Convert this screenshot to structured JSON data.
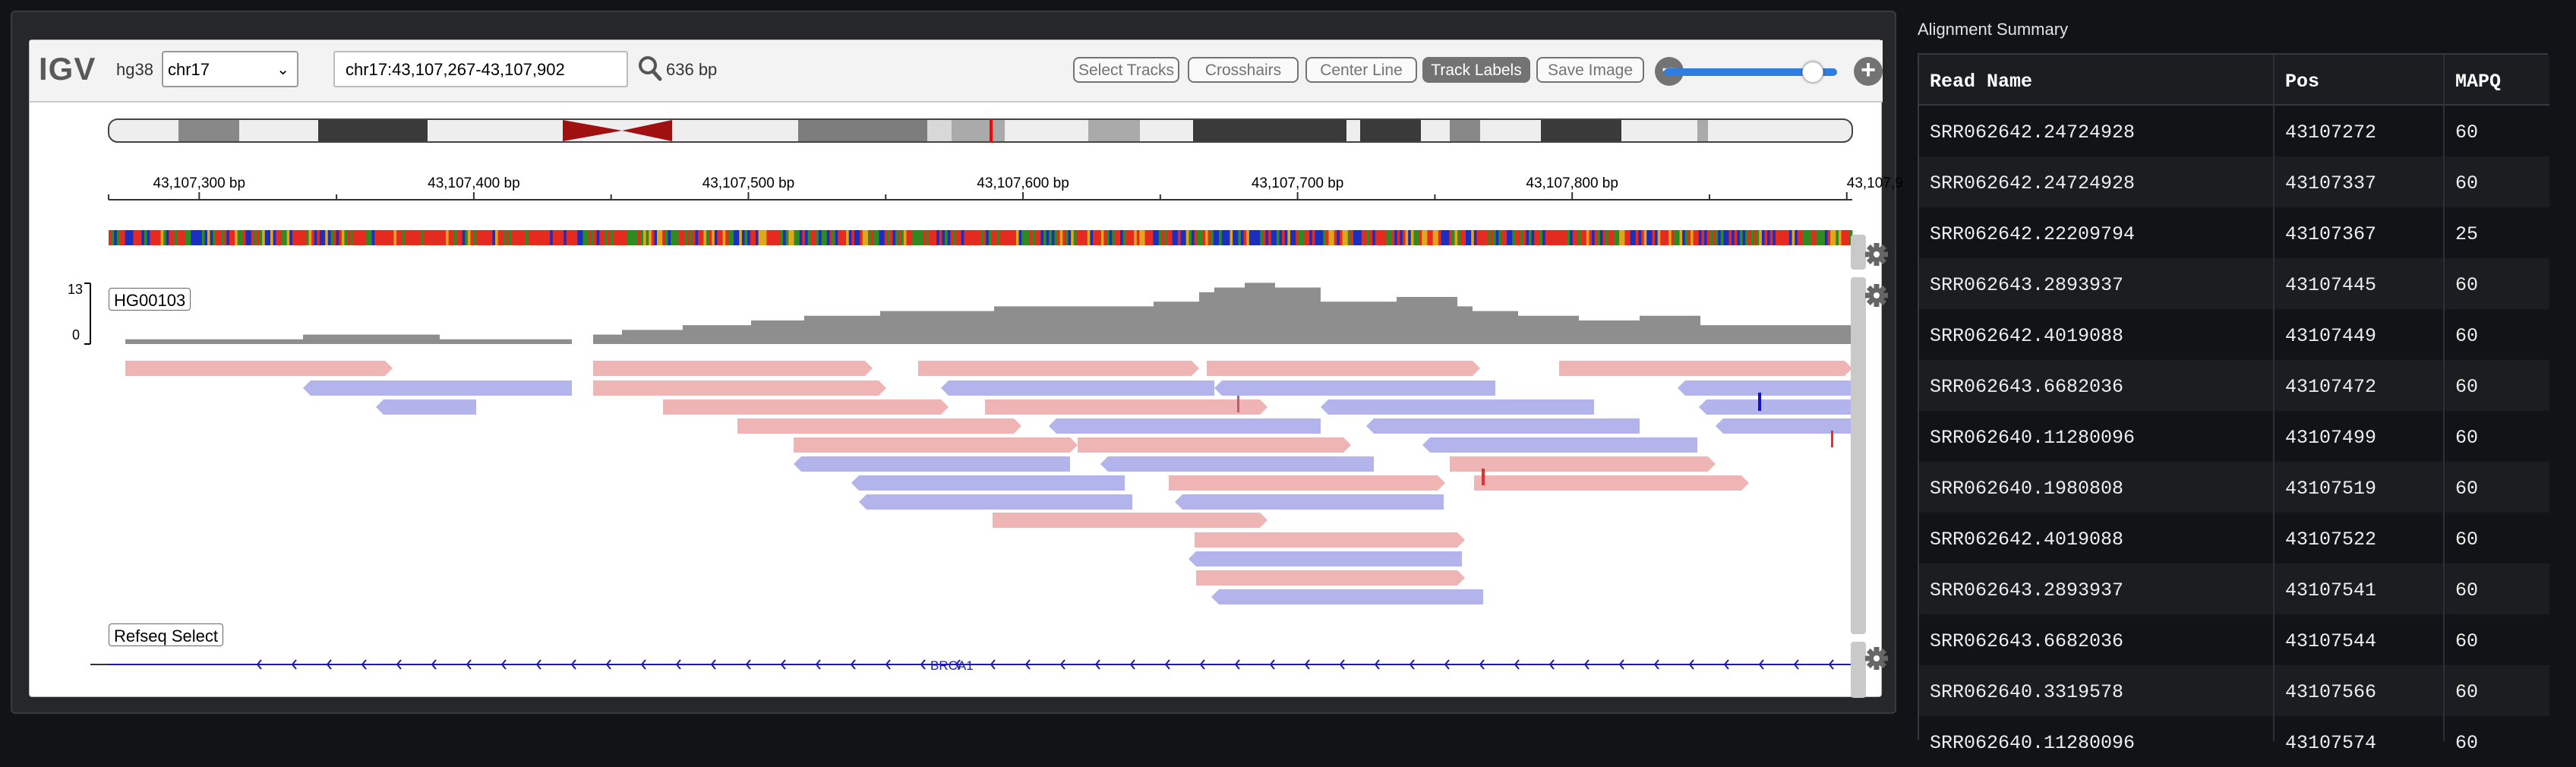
{
  "igv": {
    "logo": "IGV",
    "genome": "hg38",
    "chromosome": "chr17",
    "locus": "chr17:43,107,267-43,107,902",
    "window_size": "636 bp",
    "buttons": [
      "Select Tracks",
      "Crosshairs",
      "Center Line",
      "Track Labels",
      "Save Image"
    ],
    "active_button": "Track Labels",
    "zoom_level": 0.86,
    "ruler": {
      "start": 43107267,
      "end": 43107902,
      "labels": [
        "43,107,300 bp",
        "43,107,400 bp",
        "43,107,500 bp",
        "43,107,600 bp",
        "43,107,700 bp",
        "43,107,800 bp",
        "43,107,9"
      ]
    },
    "coverage": {
      "label": "HG00103",
      "max": "13",
      "min": "0"
    },
    "gene_track": {
      "label": "Refseq Select",
      "gene": "BRCA1",
      "color": "#1b1baa"
    },
    "colors": {
      "forward_read": "#efb4b4",
      "reverse_read": "#b4b4ed",
      "coverage": "#8e8e8e",
      "accent_blue": "#2f7de0"
    }
  },
  "summary": {
    "title": "Alignment Summary",
    "columns": [
      "Read Name",
      "Pos",
      "MAPQ"
    ],
    "rows": [
      [
        "SRR062642.24724928",
        "43107272",
        "60"
      ],
      [
        "SRR062642.24724928",
        "43107337",
        "60"
      ],
      [
        "SRR062642.22209794",
        "43107367",
        "25"
      ],
      [
        "SRR062643.2893937",
        "43107445",
        "60"
      ],
      [
        "SRR062642.4019088",
        "43107449",
        "60"
      ],
      [
        "SRR062643.6682036",
        "43107472",
        "60"
      ],
      [
        "SRR062640.11280096",
        "43107499",
        "60"
      ],
      [
        "SRR062640.1980808",
        "43107519",
        "60"
      ],
      [
        "SRR062642.4019088",
        "43107522",
        "60"
      ],
      [
        "SRR062643.2893937",
        "43107541",
        "60"
      ],
      [
        "SRR062643.6682036",
        "43107544",
        "60"
      ],
      [
        "SRR062640.3319578",
        "43107566",
        "60"
      ],
      [
        "SRR062640.11280096",
        "43107574",
        "60"
      ]
    ]
  }
}
